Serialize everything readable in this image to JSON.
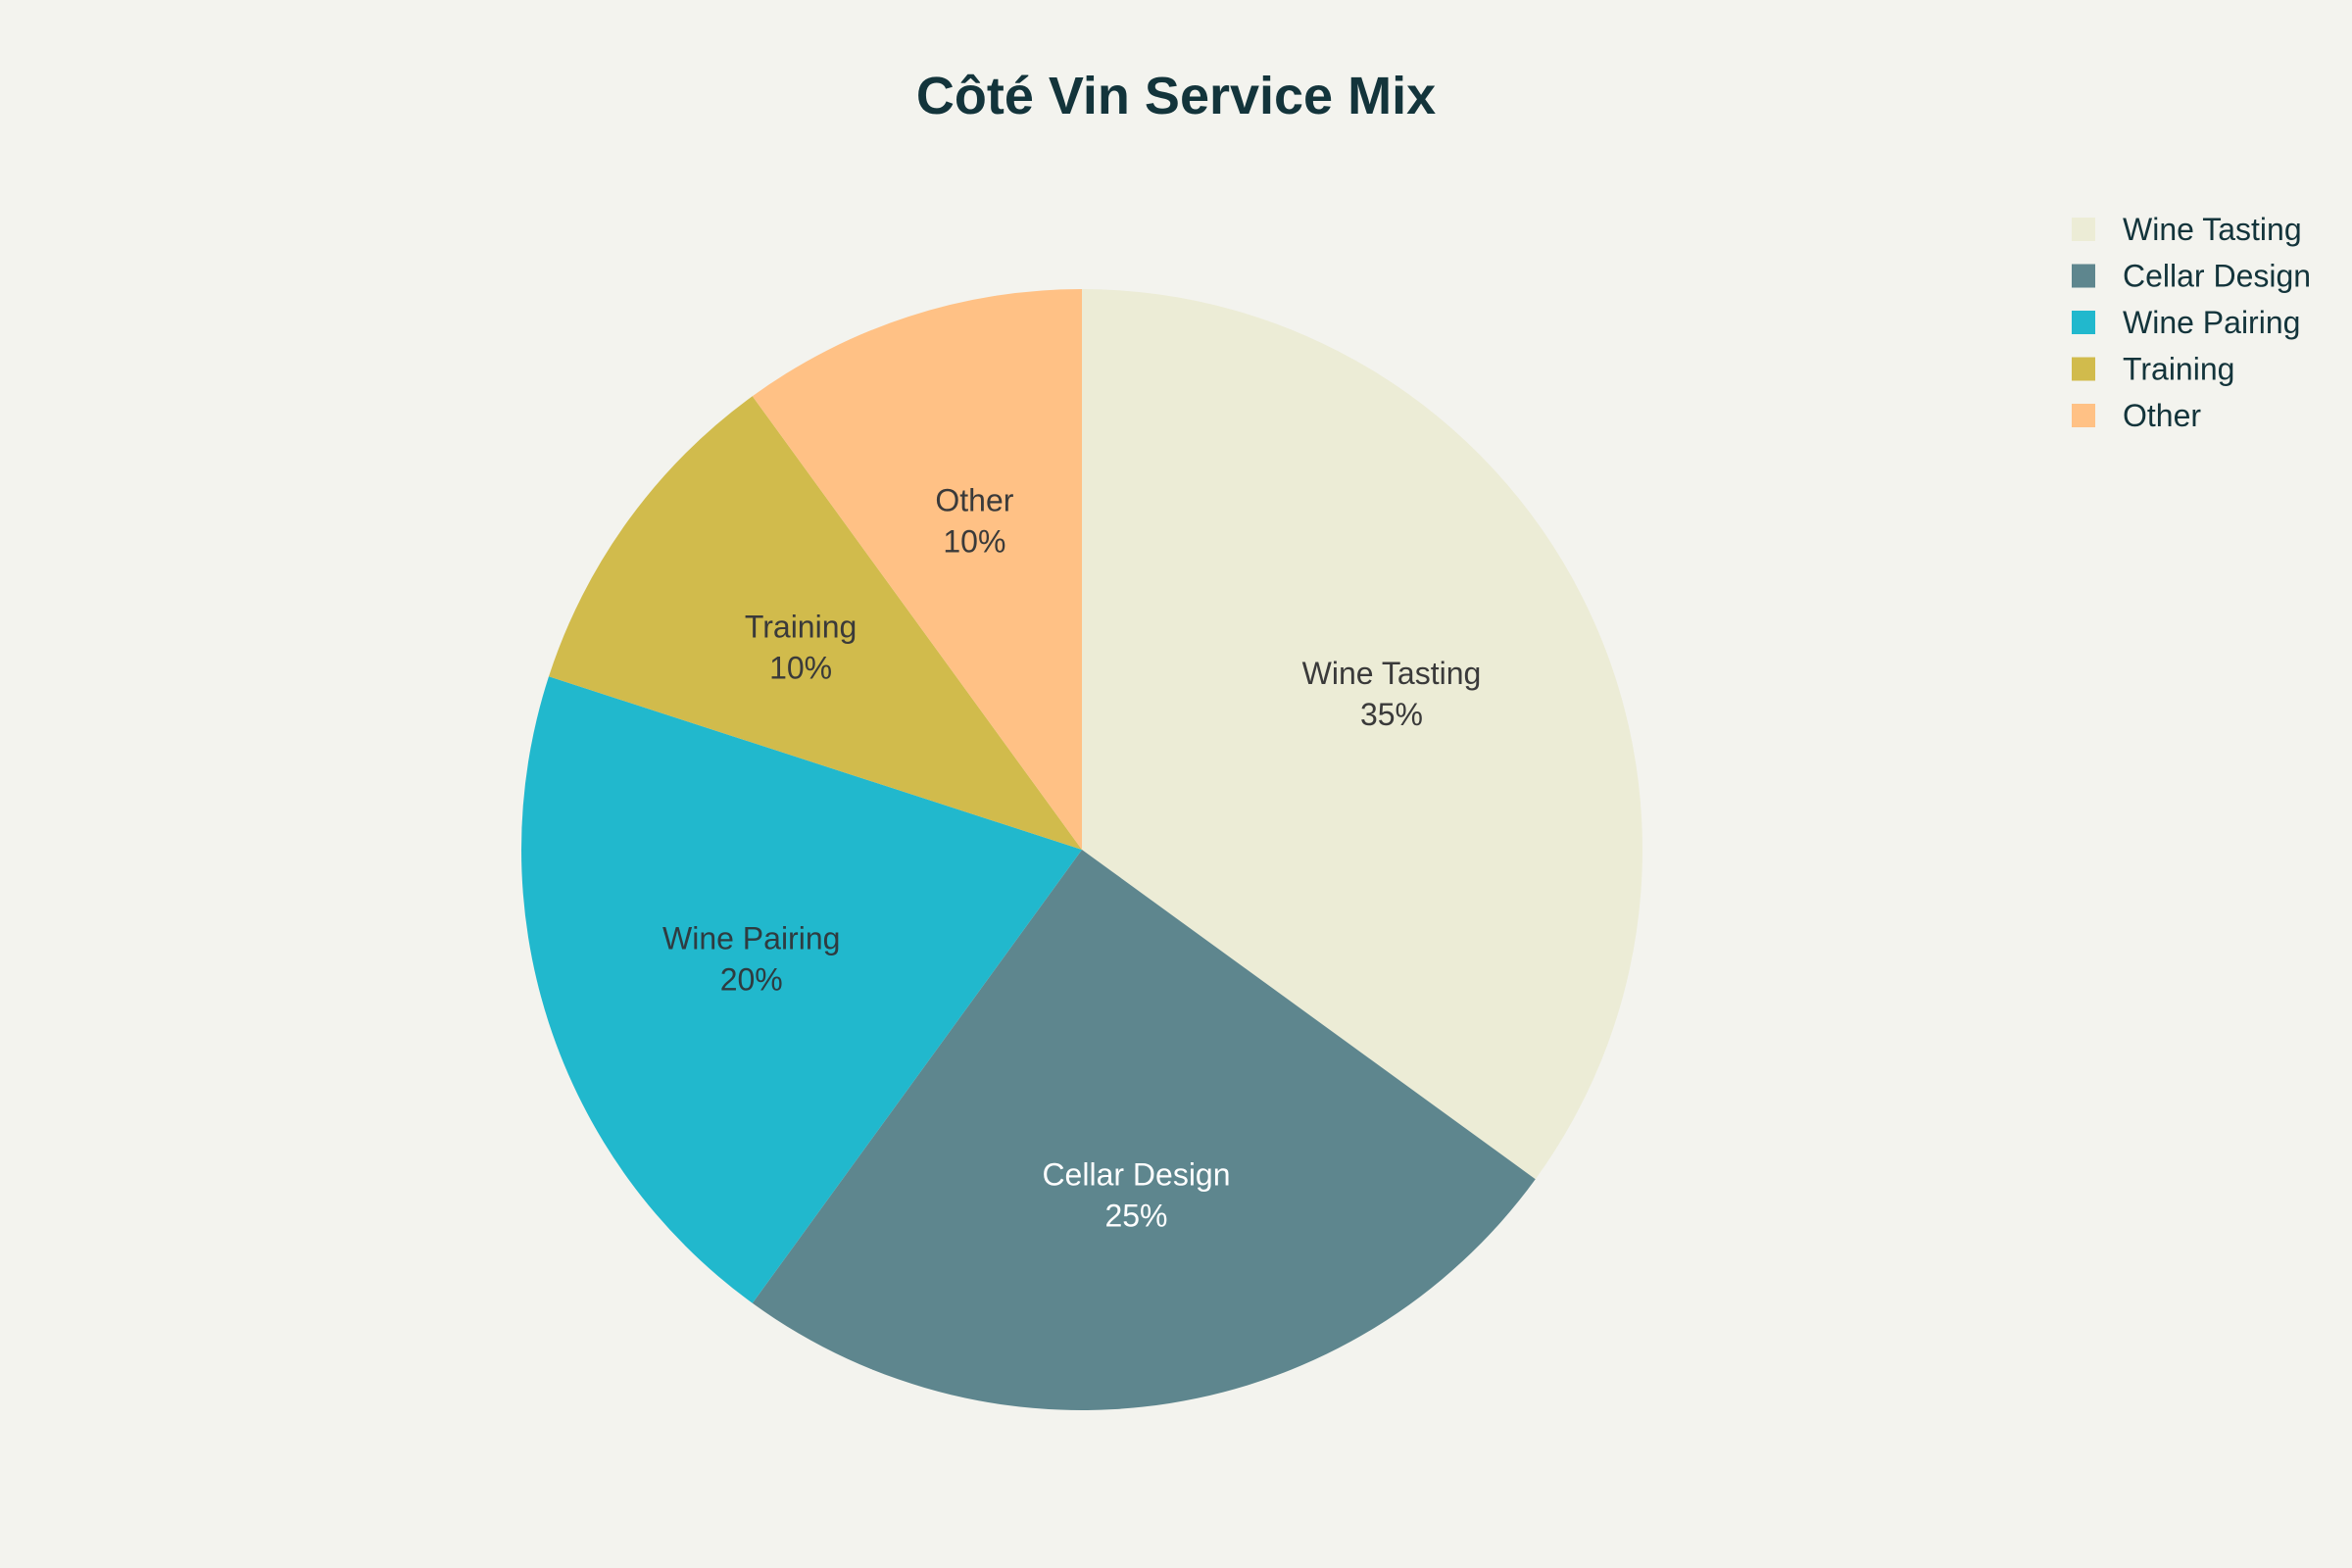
{
  "chart_data": {
    "type": "pie",
    "title": "Côté Vin Service Mix",
    "slices": [
      {
        "label": "Wine Tasting",
        "value": 35,
        "display": "35%",
        "color": "#ececd6",
        "text_color": "#3a3a3a"
      },
      {
        "label": "Cellar Design",
        "value": 25,
        "display": "25%",
        "color": "#5e868e",
        "text_color": "#ffffff"
      },
      {
        "label": "Wine Pairing",
        "value": 20,
        "display": "20%",
        "color": "#21b8cd",
        "text_color": "#2f3b40"
      },
      {
        "label": "Training",
        "value": 10,
        "display": "10%",
        "color": "#d1bb4c",
        "text_color": "#3a3a3a"
      },
      {
        "label": "Other",
        "value": 10,
        "display": "10%",
        "color": "#ffc185",
        "text_color": "#3a3a3a"
      }
    ],
    "legend": {
      "placement": "top-right",
      "entries": [
        "Wine Tasting",
        "Cellar Design",
        "Wine Pairing",
        "Training",
        "Other"
      ]
    },
    "ordering": "wine-tasting-first-clockwise-from-top"
  }
}
